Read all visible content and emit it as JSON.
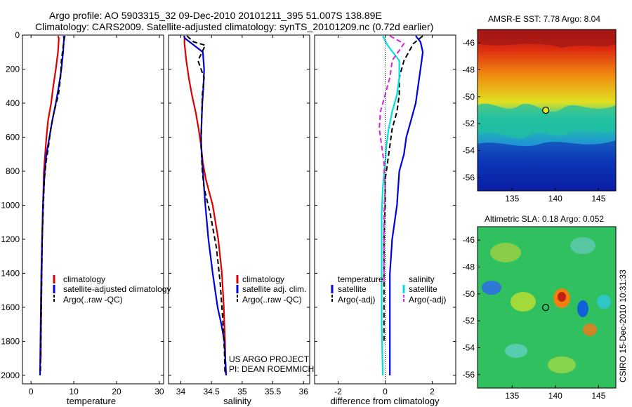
{
  "header": {
    "line1": "Argo profile: AO 5903315_32 09-Dec-2010 20101211_395 51.007S 138.89E",
    "line2": "Climatology: CARS2009. Satellite-adjusted climatology: synTS_20101209.nc (0.72d earlier)"
  },
  "credit": {
    "project": "US ARGO PROJECT",
    "pi": "PI: DEAN ROEMMICH",
    "timestamp": "CSIRO 15-Dec-2010 10:31:33"
  },
  "colors": {
    "climatology": "#dd0000",
    "satellite": "#0000dd",
    "argo": "#000000",
    "salinity_satellite": "#00e0e0",
    "salinity_argo": "#e020e0"
  },
  "chart_data": [
    {
      "id": "temperature",
      "type": "line",
      "xlabel": "temperature",
      "ylabel": "",
      "xlim": [
        -2,
        31
      ],
      "ylim": [
        2050,
        0
      ],
      "xticks": [
        0,
        10,
        20,
        30
      ],
      "yticks": [
        0,
        200,
        400,
        600,
        800,
        1000,
        1200,
        1400,
        1600,
        1800,
        2000
      ],
      "legend_position": "lower-center",
      "series": [
        {
          "name": "climatology",
          "color": "#dd0000",
          "dash": "solid",
          "x": [
            6.3,
            6.5,
            6.3,
            5.8,
            5.2,
            4.7,
            4.0,
            3.6,
            3.3,
            3.0,
            2.8,
            2.6,
            2.5,
            2.4,
            2.3,
            2.3
          ],
          "y": [
            5,
            20,
            100,
            200,
            300,
            400,
            500,
            600,
            700,
            800,
            1000,
            1200,
            1400,
            1600,
            1800,
            1900
          ]
        },
        {
          "name": "satellite-adjusted climatology",
          "color": "#0000dd",
          "dash": "solid",
          "x": [
            7.6,
            7.7,
            7.5,
            7.1,
            6.5,
            5.8,
            5.0,
            4.3,
            3.6,
            3.2,
            2.8,
            2.6,
            2.4,
            2.3,
            2.2,
            2.1
          ],
          "y": [
            5,
            20,
            100,
            200,
            300,
            400,
            500,
            600,
            700,
            800,
            1000,
            1200,
            1400,
            1600,
            1800,
            2000
          ]
        },
        {
          "name": "Argo(..raw -QC)",
          "color": "#000000",
          "dash": "dashed",
          "x": [
            7.9,
            7.6,
            7.1,
            6.9,
            6.4,
            5.4,
            4.6,
            4.1,
            3.5,
            3.1,
            2.9,
            2.6,
            2.5,
            2.4,
            2.3,
            2.2
          ],
          "y": [
            5,
            50,
            150,
            250,
            350,
            450,
            550,
            650,
            750,
            850,
            1000,
            1200,
            1400,
            1600,
            1800,
            1990
          ]
        }
      ]
    },
    {
      "id": "salinity",
      "type": "line",
      "xlabel": "salinity",
      "ylabel": "",
      "xlim": [
        33.8,
        36.1
      ],
      "ylim": [
        2050,
        0
      ],
      "xticks": [
        34,
        34.5,
        35,
        35.5,
        36
      ],
      "yticks": [
        0,
        200,
        400,
        600,
        800,
        1000,
        1200,
        1400,
        1600,
        1800,
        2000
      ],
      "legend_position": "lower-center",
      "series": [
        {
          "name": "climatology",
          "color": "#dd0000",
          "dash": "solid",
          "x": [
            34.06,
            34.06,
            34.09,
            34.13,
            34.18,
            34.24,
            34.29,
            34.33,
            34.36,
            34.41,
            34.52,
            34.61,
            34.67,
            34.7,
            34.72,
            34.73
          ],
          "y": [
            5,
            50,
            150,
            250,
            350,
            450,
            550,
            650,
            750,
            850,
            1000,
            1200,
            1400,
            1600,
            1800,
            1990
          ]
        },
        {
          "name": "satellite adj. clim.",
          "color": "#0000dd",
          "dash": "solid",
          "x": [
            34.05,
            34.07,
            34.36,
            34.38,
            34.37,
            34.35,
            34.34,
            34.33,
            34.34,
            34.36,
            34.4,
            34.45,
            34.52,
            34.6,
            34.66,
            34.71,
            34.74
          ],
          "y": [
            5,
            20,
            100,
            200,
            300,
            400,
            500,
            600,
            700,
            800,
            1000,
            1200,
            1400,
            1600,
            1700,
            1800,
            2000
          ]
        },
        {
          "name": "Argo(..raw -QC)",
          "color": "#000000",
          "dash": "dashed",
          "x": [
            34.1,
            34.21,
            34.4,
            34.28,
            34.38,
            34.35,
            34.34,
            34.33,
            34.35,
            34.38,
            34.48,
            34.58,
            34.64,
            34.68,
            34.71,
            34.72
          ],
          "y": [
            5,
            40,
            60,
            150,
            250,
            350,
            500,
            650,
            800,
            900,
            1050,
            1250,
            1450,
            1650,
            1850,
            1990
          ]
        }
      ]
    },
    {
      "id": "difference",
      "type": "line",
      "xlabel": "difference from climatology",
      "ylabel": "",
      "xlim": [
        -3,
        3
      ],
      "ylim": [
        2050,
        0
      ],
      "xticks": [
        -2,
        0,
        2
      ],
      "yticks": [
        0,
        200,
        400,
        600,
        800,
        1000,
        1200,
        1400,
        1600,
        1800,
        2000
      ],
      "zero_line": true,
      "legend_position": "lower-center",
      "series": [
        {
          "name": "temperature satellite",
          "color": "#0000dd",
          "dash": "solid",
          "x": [
            1.3,
            1.5,
            1.6,
            1.5,
            1.4,
            1.3,
            1.1,
            0.9,
            0.8,
            0.6,
            0.5,
            0.3,
            0.2,
            0.2,
            0.2,
            0.2
          ],
          "y": [
            5,
            40,
            100,
            200,
            300,
            400,
            500,
            600,
            700,
            800,
            1000,
            1200,
            1400,
            1600,
            1800,
            2000
          ]
        },
        {
          "name": "temperature Argo(-adj)",
          "color": "#000000",
          "dash": "dashed",
          "x": [
            1.6,
            1.2,
            0.8,
            0.6,
            0.6,
            0.5,
            0.3,
            0.2,
            0.1,
            0.0,
            0.0,
            -0.05,
            -0.05,
            -0.05,
            -0.05
          ],
          "y": [
            5,
            50,
            150,
            250,
            350,
            450,
            550,
            650,
            750,
            850,
            1000,
            1200,
            1400,
            1600,
            1800
          ]
        },
        {
          "name": "salinity satellite",
          "color": "#00e0e0",
          "dash": "solid",
          "x": [
            -0.1,
            0.1,
            0.6,
            0.6,
            0.5,
            0.3,
            0.15,
            0.05,
            0.0,
            -0.1,
            -0.15,
            -0.15,
            -0.15,
            -0.15,
            -0.1
          ],
          "y": [
            5,
            60,
            150,
            250,
            350,
            450,
            550,
            650,
            750,
            900,
            1050,
            1250,
            1450,
            1700,
            2000
          ]
        },
        {
          "name": "salinity Argo(-adj)",
          "color": "#e020e0",
          "dash": "dashed",
          "x": [
            0.2,
            0.8,
            0.3,
            0.2,
            0.0,
            -0.2,
            -0.25,
            -0.15,
            -0.05,
            0.0,
            -0.05,
            -0.05,
            -0.05
          ],
          "y": [
            5,
            50,
            150,
            250,
            350,
            450,
            550,
            650,
            750,
            900,
            1050,
            1250,
            1450
          ]
        }
      ]
    },
    {
      "id": "sst_map",
      "type": "heatmap",
      "title": "AMSR-E SST: 7.78 Argo: 8.04",
      "xlim": [
        131,
        147
      ],
      "ylim": [
        -57,
        -45
      ],
      "xticks": [
        135,
        140,
        145
      ],
      "yticks": [
        -46,
        -48,
        -50,
        -52,
        -54,
        -56
      ],
      "marker": {
        "lon": 138.89,
        "lat": -51.007
      },
      "colormap": "jet"
    },
    {
      "id": "sla_map",
      "type": "heatmap",
      "title": "Altimetric SLA: 0.18 Argo: 0.052",
      "xlim": [
        131,
        147
      ],
      "ylim": [
        -57,
        -45
      ],
      "xticks": [
        135,
        140,
        145
      ],
      "yticks": [
        -46,
        -48,
        -50,
        -52,
        -54,
        -56
      ],
      "marker": {
        "lon": 138.89,
        "lat": -51.007
      },
      "colormap": "jet"
    }
  ],
  "legends": {
    "temperature": [
      "climatology",
      "satellite-adjusted climatology",
      "Argo(..raw -QC)"
    ],
    "salinity": [
      "climatology",
      "satellite adj. clim.",
      "Argo(..raw -QC)"
    ],
    "difference_headers": [
      "temperature",
      "salinity"
    ],
    "difference_left": [
      "satellite",
      "Argo(-adj)"
    ],
    "difference_right": [
      "satellite",
      "Argo(-adj)"
    ]
  }
}
